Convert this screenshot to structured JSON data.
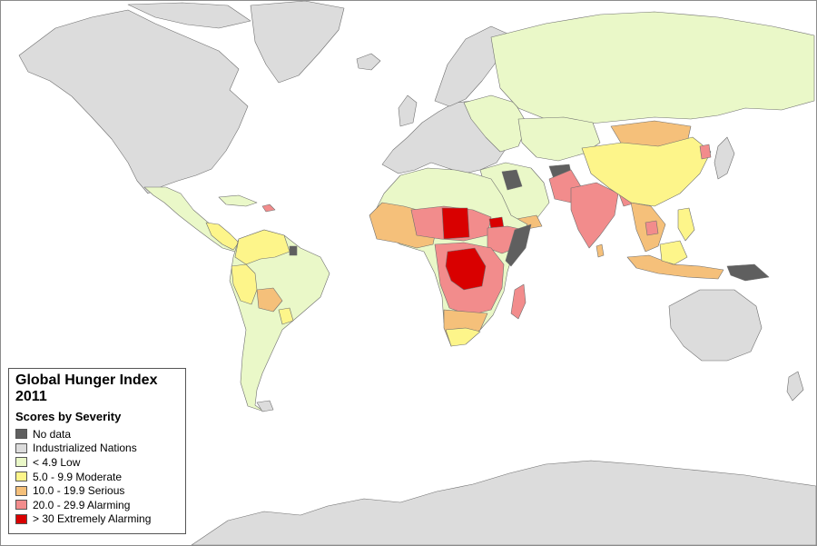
{
  "legend": {
    "title_line1": "Global Hunger Index",
    "title_line2": "2011",
    "subtitle": "Scores by Severity",
    "items": [
      {
        "label": "No data",
        "color": "#5f5f5f"
      },
      {
        "label": "Industrialized Nations",
        "color": "#dcdcdc"
      },
      {
        "label": "< 4.9 Low",
        "color": "#eaf8c8"
      },
      {
        "label": "5.0 - 9.9 Moderate",
        "color": "#fdf58a"
      },
      {
        "label": "10.0 - 19.9 Serious",
        "color": "#f5c07a"
      },
      {
        "label": "20.0 - 29.9 Alarming",
        "color": "#f28c8c"
      },
      {
        "label": "> 30 Extremely Alarming",
        "color": "#d90000"
      }
    ]
  }
}
